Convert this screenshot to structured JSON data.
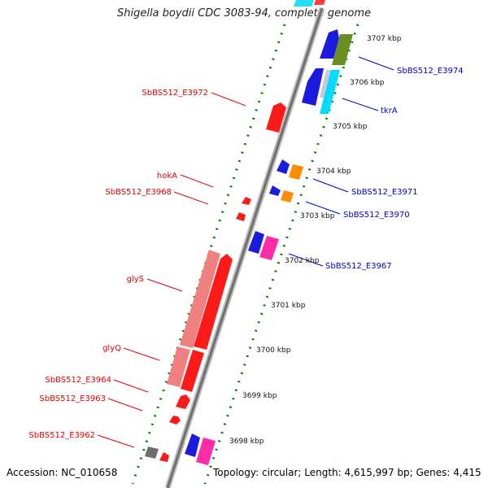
{
  "title": "Shigella boydii CDC 3083-94, complete genome",
  "accession": "Accession: NC_010658",
  "summary": "Topology: circular; Length: 4,615,997 bp; Genes: 4,415",
  "colors": {
    "backbone": "#888888",
    "tick": "#008000",
    "label_left": "#e00000",
    "label_right": "#0000cc"
  },
  "kbp_ticks": [
    "3707 kbp",
    "3706 kbp",
    "3705 kbp",
    "3704 kbp",
    "3703 kbp",
    "3702 kbp",
    "3701 kbp",
    "3700 kbp",
    "3699 kbp",
    "3698 kbp"
  ],
  "left_labels": [
    "SbBS512_E3972",
    "hokA",
    "SbBS512_E3968",
    "glyS",
    "glyQ",
    "SbBS512_E3964",
    "SbBS512_E3963",
    "SbBS512_E3962"
  ],
  "right_labels": [
    "SbBS512_E3974",
    "tkrA",
    "SbBS512_E3971",
    "SbBS512_E3970",
    "SbBS512_E3967"
  ]
}
